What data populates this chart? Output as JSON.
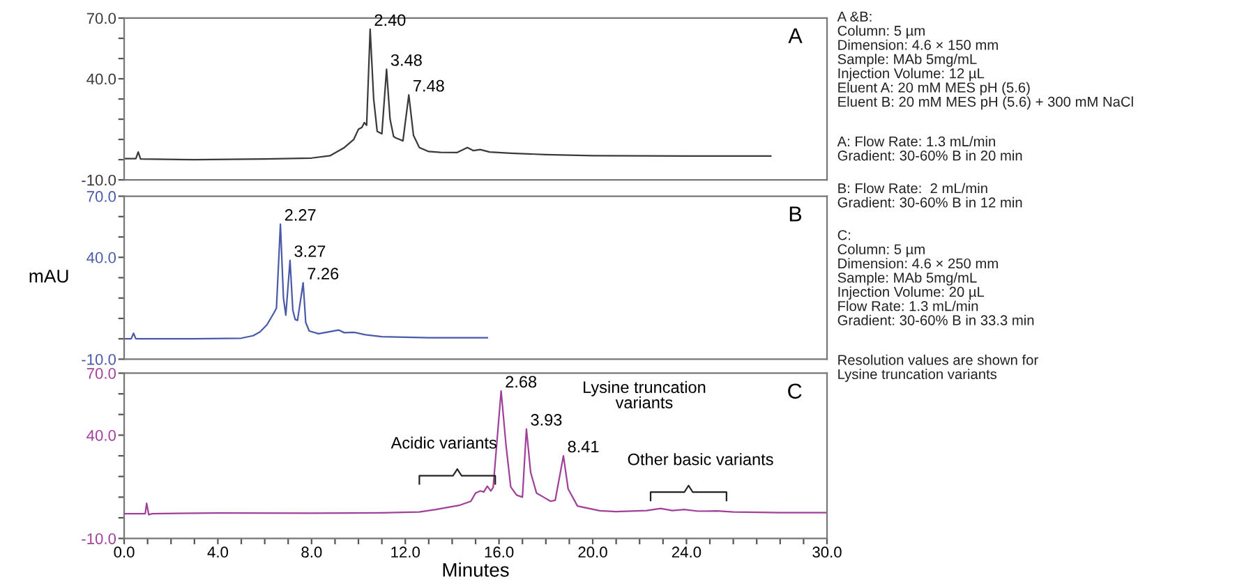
{
  "chart_data": [
    {
      "type": "line",
      "title": "A",
      "x": [
        0,
        0.5,
        0.6,
        0.7,
        3,
        6,
        8,
        8.8,
        9.4,
        9.8,
        10.0,
        10.15,
        10.25,
        10.35,
        10.5,
        10.65,
        10.8,
        11.0,
        11.2,
        11.35,
        11.5,
        11.6,
        11.75,
        11.9,
        12.15,
        12.35,
        12.6,
        13.0,
        13.5,
        14.2,
        14.65,
        14.9,
        15.2,
        15.6,
        16.5,
        18,
        20,
        24,
        27.6
      ],
      "series": [
        {
          "color": "#3a3a3a",
          "values": [
            0.5,
            0.5,
            3.8,
            0.3,
            0,
            0.3,
            0.8,
            2,
            6,
            10,
            15,
            16,
            18.3,
            17,
            64.5,
            30,
            14,
            12.8,
            44.7,
            20,
            11.5,
            10.7,
            10,
            9.3,
            32,
            12,
            6,
            4,
            3.6,
            3.5,
            6,
            4.5,
            5,
            3.8,
            3.2,
            2.5,
            2,
            1.8,
            1.8
          ]
        }
      ],
      "xlim": [
        0,
        30
      ],
      "ylim": [
        -10,
        70
      ],
      "yticks": [
        {
          "value": 70,
          "label": "70.0"
        },
        {
          "value": 60,
          "label": null
        },
        {
          "value": 50,
          "label": null
        },
        {
          "value": 40,
          "label": "40.0"
        },
        {
          "value": 30,
          "label": null
        },
        {
          "value": 20,
          "label": null
        },
        {
          "value": 10,
          "label": null
        },
        {
          "value": 0,
          "label": null
        },
        {
          "value": -10,
          "label": "-10.0"
        }
      ],
      "tick_labels": "y",
      "grid": false,
      "annotations": [
        {
          "text": "2.40",
          "x": 10.5,
          "y": 64.5
        },
        {
          "text": "3.48",
          "x": 11.2,
          "y": 44.7
        },
        {
          "text": "7.48",
          "x": 12.15,
          "y": 32
        }
      ]
    },
    {
      "type": "line",
      "title": "B",
      "ylabel": "mAU",
      "x": [
        0,
        0.3,
        0.4,
        0.5,
        3,
        5,
        5.5,
        5.8,
        6.1,
        6.37,
        6.5,
        6.67,
        6.8,
        6.9,
        7.08,
        7.2,
        7.3,
        7.4,
        7.64,
        7.75,
        7.9,
        8.3,
        9.15,
        9.4,
        9.8,
        10.3,
        11,
        13,
        15.5
      ],
      "series": [
        {
          "color": "#4a5aa8",
          "values": [
            0,
            0,
            2.7,
            0,
            0,
            0.3,
            1.5,
            3.4,
            7,
            12.3,
            15,
            56.3,
            20,
            11.6,
            38.5,
            14,
            9.5,
            9,
            27.5,
            8,
            3.8,
            2.5,
            4.3,
            3,
            3.2,
            2,
            1,
            0.5,
            0.5
          ]
        }
      ],
      "xlim": [
        0,
        30
      ],
      "ylim": [
        -10,
        70
      ],
      "yticks": [
        {
          "value": 70,
          "label": "70.0"
        },
        {
          "value": 60,
          "label": null
        },
        {
          "value": 50,
          "label": null
        },
        {
          "value": 40,
          "label": "40.0"
        },
        {
          "value": 30,
          "label": null
        },
        {
          "value": 20,
          "label": null
        },
        {
          "value": 10,
          "label": null
        },
        {
          "value": 0,
          "label": null
        },
        {
          "value": -10,
          "label": "-10.0"
        }
      ],
      "tick_labels": "y",
      "grid": false,
      "annotations": [
        {
          "text": "2.27",
          "x": 6.67,
          "y": 56.3
        },
        {
          "text": "3.27",
          "x": 7.08,
          "y": 38.5
        },
        {
          "text": "7.26",
          "x": 7.64,
          "y": 27.5
        }
      ]
    },
    {
      "type": "line",
      "title": "C",
      "xlabel": "Minutes",
      "x": [
        0,
        0.9,
        0.96,
        1.05,
        1.2,
        4,
        8,
        11,
        12.6,
        13.3,
        13.8,
        14.3,
        14.8,
        15.0,
        15.2,
        15.35,
        15.5,
        15.65,
        15.75,
        16.09,
        16.3,
        16.5,
        16.75,
        17.0,
        17.17,
        17.35,
        17.6,
        17.9,
        18.2,
        18.4,
        18.75,
        18.95,
        19.35,
        20.3,
        21,
        22.3,
        22.9,
        23.4,
        23.9,
        24.5,
        25.3,
        26,
        28,
        30
      ],
      "series": [
        {
          "color": "#a0409a",
          "values": [
            2,
            2,
            7,
            1.5,
            2,
            2.3,
            2.2,
            2.4,
            2.8,
            4,
            5,
            6,
            8,
            12,
            13,
            12.5,
            15.3,
            13,
            14.6,
            61.4,
            35,
            15,
            11,
            10,
            43,
            22,
            12,
            10,
            8,
            8.5,
            30,
            14,
            5.7,
            3.4,
            3,
            3.5,
            4.5,
            3.5,
            4,
            3.2,
            3.3,
            2.8,
            2.5,
            2.5
          ]
        }
      ],
      "xlim": [
        0,
        30
      ],
      "ylim": [
        -10,
        70
      ],
      "xticks": [
        {
          "value": 0,
          "label": "0.0"
        },
        {
          "value": 1,
          "label": null
        },
        {
          "value": 2,
          "label": null
        },
        {
          "value": 3,
          "label": null
        },
        {
          "value": 4,
          "label": "4.0"
        },
        {
          "value": 5,
          "label": null
        },
        {
          "value": 6,
          "label": null
        },
        {
          "value": 7,
          "label": null
        },
        {
          "value": 8,
          "label": "8.0"
        },
        {
          "value": 9,
          "label": null
        },
        {
          "value": 10,
          "label": null
        },
        {
          "value": 11,
          "label": null
        },
        {
          "value": 12,
          "label": "12.0"
        },
        {
          "value": 13,
          "label": null
        },
        {
          "value": 14,
          "label": null
        },
        {
          "value": 15,
          "label": null
        },
        {
          "value": 16,
          "label": "16.0"
        },
        {
          "value": 17,
          "label": null
        },
        {
          "value": 18,
          "label": null
        },
        {
          "value": 19,
          "label": null
        },
        {
          "value": 20,
          "label": "20.0"
        },
        {
          "value": 21,
          "label": null
        },
        {
          "value": 22,
          "label": null
        },
        {
          "value": 23,
          "label": null
        },
        {
          "value": 24,
          "label": "24.0"
        },
        {
          "value": 25,
          "label": null
        },
        {
          "value": 26,
          "label": null
        },
        {
          "value": 27,
          "label": null
        },
        {
          "value": 28,
          "label": null
        },
        {
          "value": 29,
          "label": null
        },
        {
          "value": 30,
          "label": "30.0"
        }
      ],
      "yticks": [
        {
          "value": 70,
          "label": "70.0"
        },
        {
          "value": 60,
          "label": null
        },
        {
          "value": 50,
          "label": null
        },
        {
          "value": 40,
          "label": "40.0"
        },
        {
          "value": 30,
          "label": null
        },
        {
          "value": 20,
          "label": null
        },
        {
          "value": 10,
          "label": null
        },
        {
          "value": 0,
          "label": null
        },
        {
          "value": -10,
          "label": "-10.0"
        }
      ],
      "grid": false,
      "annotations": [
        {
          "text": "2.68",
          "x": 16.09,
          "y": 61.4
        },
        {
          "text": "3.93",
          "x": 17.17,
          "y": 43
        },
        {
          "text": "8.41",
          "x": 18.75,
          "y": 30
        },
        "Lysine truncation\nvariants",
        "Acidic variants",
        "Other basic variants"
      ]
    },
    {
      "type": "other",
      "annotations": [
        "A &B:\nColumn: 5 µm\nDimension: 4.6 × 150 mm\nSample: MAb 5mg/mL\nInjection Volume: 12 µL\nEluent A: 20 mM MES pH (5.6)\nEluent B: 20 mM MES pH (5.6) + 300 mM NaCl",
        "A: Flow Rate: 1.3 mL/min\nGradient: 30-60% B in 20 min",
        "B: Flow Rate:  2 mL/min\nGradient: 30-60% B in 12 min",
        "C:\nColumn: 5 µm\nDimension: 4.6 × 250 mm\nSample: MAb 5mg/mL\nInjection Volume: 20 µL\nFlow Rate: 1.3 mL/min\nGradient: 30-60% B in 33.3 min",
        "Resolution values are shown for\nLysine truncation variants"
      ]
    }
  ]
}
